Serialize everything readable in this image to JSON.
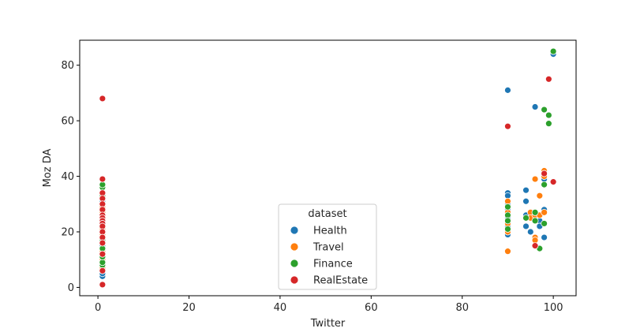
{
  "chart_data": {
    "type": "scatter",
    "title": "",
    "xlabel": "Twitter",
    "ylabel": "Moz DA",
    "xlim": [
      -4,
      105
    ],
    "ylim": [
      -3,
      89
    ],
    "xticks": [
      0,
      20,
      40,
      60,
      80,
      100
    ],
    "yticks": [
      0,
      20,
      40,
      60,
      80
    ],
    "grid": false,
    "legend": {
      "title": "dataset",
      "placement": "lower-center"
    },
    "series": [
      {
        "name": "Health",
        "color": "#1f77b4",
        "points": [
          [
            1,
            4
          ],
          [
            1,
            5
          ],
          [
            1,
            6
          ],
          [
            1,
            9
          ],
          [
            1,
            12
          ],
          [
            1,
            15
          ],
          [
            1,
            18
          ],
          [
            1,
            20
          ],
          [
            1,
            22
          ],
          [
            1,
            25
          ],
          [
            1,
            28
          ],
          [
            1,
            31
          ],
          [
            1,
            34
          ],
          [
            90,
            71
          ],
          [
            90,
            34
          ],
          [
            90,
            33
          ],
          [
            90,
            30
          ],
          [
            90,
            28
          ],
          [
            90,
            25
          ],
          [
            90,
            22
          ],
          [
            90,
            19
          ],
          [
            94,
            35
          ],
          [
            94,
            31
          ],
          [
            94,
            26
          ],
          [
            94,
            22
          ],
          [
            95,
            20
          ],
          [
            96,
            65
          ],
          [
            96,
            27
          ],
          [
            97,
            24
          ],
          [
            97,
            22
          ],
          [
            98,
            39
          ],
          [
            98,
            28
          ],
          [
            98,
            18
          ],
          [
            100,
            84
          ]
        ]
      },
      {
        "name": "Travel",
        "color": "#ff7f0e",
        "points": [
          [
            1,
            7
          ],
          [
            1,
            10
          ],
          [
            1,
            13
          ],
          [
            1,
            16
          ],
          [
            1,
            19
          ],
          [
            1,
            21
          ],
          [
            1,
            24
          ],
          [
            1,
            27
          ],
          [
            1,
            29
          ],
          [
            1,
            32
          ],
          [
            90,
            31
          ],
          [
            90,
            29
          ],
          [
            90,
            27
          ],
          [
            90,
            24
          ],
          [
            90,
            23
          ],
          [
            90,
            20
          ],
          [
            90,
            13
          ],
          [
            95,
            27
          ],
          [
            95,
            25
          ],
          [
            96,
            39
          ],
          [
            96,
            26
          ],
          [
            96,
            18
          ],
          [
            96,
            17
          ],
          [
            97,
            33
          ],
          [
            97,
            26
          ],
          [
            98,
            42
          ],
          [
            98,
            40
          ],
          [
            98,
            27
          ]
        ]
      },
      {
        "name": "Finance",
        "color": "#2ca02c",
        "points": [
          [
            1,
            8
          ],
          [
            1,
            9
          ],
          [
            1,
            11
          ],
          [
            1,
            14
          ],
          [
            1,
            17
          ],
          [
            1,
            20
          ],
          [
            1,
            23
          ],
          [
            1,
            26
          ],
          [
            1,
            30
          ],
          [
            1,
            33
          ],
          [
            1,
            36
          ],
          [
            1,
            37
          ],
          [
            90,
            29
          ],
          [
            90,
            26
          ],
          [
            90,
            24
          ],
          [
            90,
            21
          ],
          [
            94,
            25
          ],
          [
            96,
            27
          ],
          [
            96,
            24
          ],
          [
            97,
            14
          ],
          [
            98,
            64
          ],
          [
            98,
            37
          ],
          [
            98,
            23
          ],
          [
            99,
            62
          ],
          [
            99,
            59
          ],
          [
            100,
            85
          ]
        ]
      },
      {
        "name": "RealEstate",
        "color": "#d62728",
        "points": [
          [
            1,
            68
          ],
          [
            1,
            39
          ],
          [
            1,
            34
          ],
          [
            1,
            32
          ],
          [
            1,
            30
          ],
          [
            1,
            28
          ],
          [
            1,
            26
          ],
          [
            1,
            25
          ],
          [
            1,
            24
          ],
          [
            1,
            23
          ],
          [
            1,
            22
          ],
          [
            1,
            20
          ],
          [
            1,
            18
          ],
          [
            1,
            16
          ],
          [
            1,
            12
          ],
          [
            1,
            6
          ],
          [
            1,
            1
          ],
          [
            90,
            58
          ],
          [
            96,
            15
          ],
          [
            98,
            41
          ],
          [
            99,
            75
          ],
          [
            100,
            38
          ]
        ]
      }
    ]
  }
}
